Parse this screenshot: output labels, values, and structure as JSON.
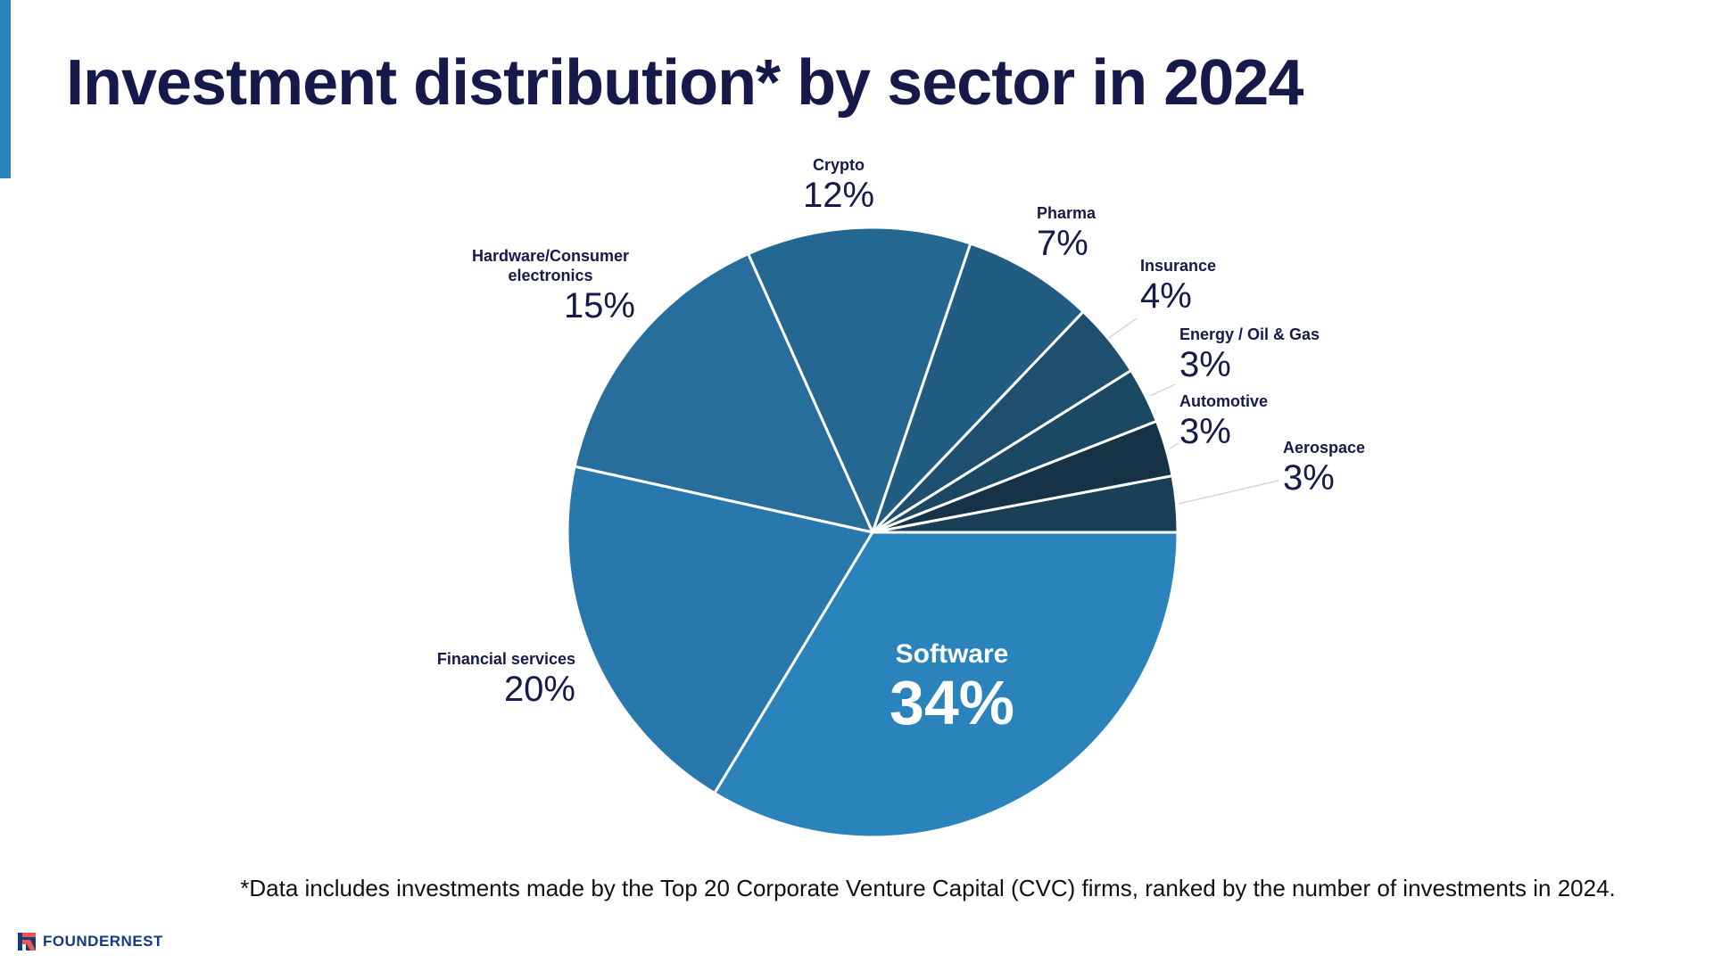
{
  "title": "Investment distribution* by sector in 2024",
  "footnote": "*Data includes investments made by the Top 20 Corporate Venture Capital (CVC) firms, ranked by the number of investments in 2024.",
  "brand": {
    "name": "FOUNDERNEST",
    "colors": {
      "primary": "#123b82",
      "secondary": "#f0564a"
    }
  },
  "colors": {
    "accent": "#2a83bb",
    "title": "#161a4a"
  },
  "chart_data": {
    "type": "pie",
    "title": "Investment distribution* by sector in 2024",
    "start_angle": "3 o'clock, counter-clockwise",
    "slices": [
      {
        "label": "Aerospace",
        "value": 3,
        "display": "3%",
        "color": "#1b3f57"
      },
      {
        "label": "Automotive",
        "value": 3,
        "display": "3%",
        "color": "#153246"
      },
      {
        "label": "Energy / Oil & Gas",
        "value": 3,
        "display": "3%",
        "color": "#1b4862"
      },
      {
        "label": "Insurance",
        "value": 4,
        "display": "4%",
        "color": "#1e4f6e"
      },
      {
        "label": "Pharma",
        "value": 7,
        "display": "7%",
        "color": "#215c82"
      },
      {
        "label": "Crypto",
        "value": 12,
        "display": "12%",
        "color": "#246791"
      },
      {
        "label": "Hardware/Consumer electronics",
        "value": 15,
        "display": "15%",
        "color": "#276e9c"
      },
      {
        "label": "Financial services",
        "value": 20,
        "display": "20%",
        "color": "#2878ae"
      },
      {
        "label": "Software",
        "value": 34,
        "display": "34%",
        "color": "#2a83bb"
      }
    ]
  }
}
